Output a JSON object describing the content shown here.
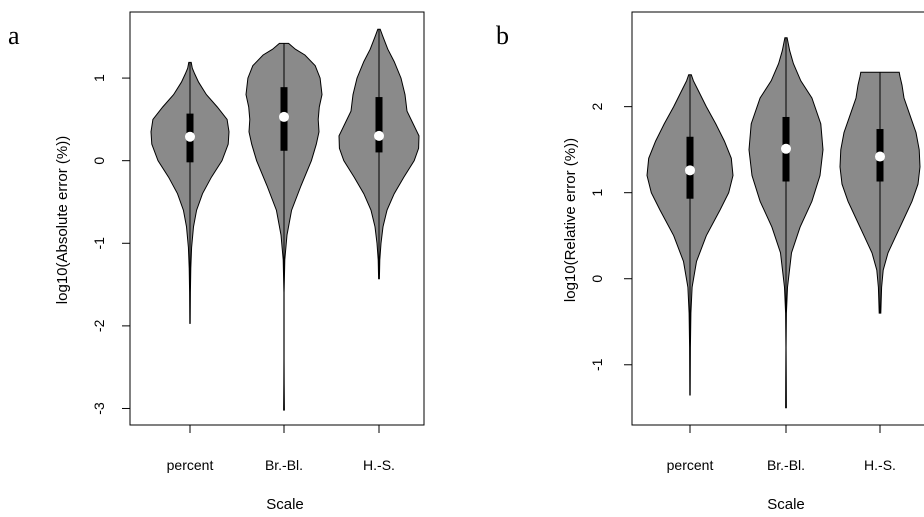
{
  "chart_data": [
    {
      "type": "violin",
      "panel": "a",
      "xlabel": "Scale",
      "ylabel": "log10(Absolute error (%))",
      "categories": [
        "percent",
        "Br.-Bl.",
        "H.-S."
      ],
      "ylim": [
        -3.2,
        1.8
      ],
      "yticks": [
        -3,
        -2,
        -1,
        0,
        1
      ],
      "yticklabels": [
        "-3",
        "-2",
        "-1",
        "0",
        "1"
      ],
      "grid": false,
      "legend": "none",
      "colors": {
        "violin_fill": "#8a8a8a",
        "box": "#000000",
        "median": "#ffffff"
      },
      "series": [
        {
          "category": "percent",
          "min": -1.97,
          "q1": -0.02,
          "median": 0.29,
          "q3": 0.57,
          "max": 1.19,
          "whisker_low": -1.97,
          "whisker_high": 1.19,
          "density": [
            [
              -1.97,
              0.004
            ],
            [
              -1.6,
              0.01
            ],
            [
              -1.3,
              0.02
            ],
            [
              -1.05,
              0.04
            ],
            [
              -0.8,
              0.09
            ],
            [
              -0.6,
              0.17
            ],
            [
              -0.4,
              0.32
            ],
            [
              -0.2,
              0.55
            ],
            [
              0.0,
              0.82
            ],
            [
              0.2,
              0.98
            ],
            [
              0.35,
              1.0
            ],
            [
              0.5,
              0.95
            ],
            [
              0.65,
              0.7
            ],
            [
              0.8,
              0.42
            ],
            [
              0.95,
              0.22
            ],
            [
              1.05,
              0.12
            ],
            [
              1.12,
              0.06
            ],
            [
              1.19,
              0.03
            ]
          ]
        },
        {
          "category": "Br.-Bl.",
          "min": -3.02,
          "q1": 0.12,
          "median": 0.53,
          "q3": 0.89,
          "max": 1.42,
          "whisker_low": -3.02,
          "whisker_high": 1.42,
          "density": [
            [
              -3.02,
              0.01
            ],
            [
              -2.7,
              0.006
            ],
            [
              -2.4,
              0.002
            ],
            [
              -1.6,
              0.002
            ],
            [
              -1.2,
              0.02
            ],
            [
              -0.9,
              0.08
            ],
            [
              -0.6,
              0.2
            ],
            [
              -0.3,
              0.45
            ],
            [
              0.0,
              0.72
            ],
            [
              0.2,
              0.85
            ],
            [
              0.35,
              0.92
            ],
            [
              0.5,
              0.9
            ],
            [
              0.65,
              0.93
            ],
            [
              0.8,
              1.0
            ],
            [
              1.0,
              0.95
            ],
            [
              1.15,
              0.82
            ],
            [
              1.28,
              0.55
            ],
            [
              1.35,
              0.3
            ],
            [
              1.42,
              0.12
            ]
          ]
        },
        {
          "category": "H.-S.",
          "min": -1.43,
          "q1": 0.1,
          "median": 0.3,
          "q3": 0.77,
          "max": 1.59,
          "whisker_low": -1.43,
          "whisker_high": 1.59,
          "density": [
            [
              -1.43,
              0.01
            ],
            [
              -1.2,
              0.02
            ],
            [
              -1.0,
              0.05
            ],
            [
              -0.8,
              0.1
            ],
            [
              -0.6,
              0.2
            ],
            [
              -0.4,
              0.38
            ],
            [
              -0.2,
              0.62
            ],
            [
              0.0,
              0.88
            ],
            [
              0.15,
              0.99
            ],
            [
              0.3,
              1.0
            ],
            [
              0.45,
              0.85
            ],
            [
              0.6,
              0.7
            ],
            [
              0.8,
              0.65
            ],
            [
              1.0,
              0.55
            ],
            [
              1.2,
              0.38
            ],
            [
              1.35,
              0.22
            ],
            [
              1.5,
              0.1
            ],
            [
              1.59,
              0.03
            ]
          ]
        }
      ]
    },
    {
      "type": "violin",
      "panel": "b",
      "xlabel": "Scale",
      "ylabel": "log10(Relative error (%))",
      "categories": [
        "percent",
        "Br.-Bl.",
        "H.-S."
      ],
      "ylim": [
        -1.7,
        3.1
      ],
      "yticks": [
        -1,
        0,
        1,
        2
      ],
      "yticklabels": [
        "-1",
        "0",
        "1",
        "2"
      ],
      "grid": false,
      "legend": "none",
      "colors": {
        "violin_fill": "#8a8a8a",
        "box": "#000000",
        "median": "#ffffff"
      },
      "series": [
        {
          "category": "percent",
          "min": -1.35,
          "q1": 0.93,
          "median": 1.26,
          "q3": 1.65,
          "max": 2.37,
          "whisker_low": -1.35,
          "whisker_high": 2.37,
          "density": [
            [
              -1.35,
              0.004
            ],
            [
              -0.8,
              0.01
            ],
            [
              -0.4,
              0.02
            ],
            [
              -0.1,
              0.05
            ],
            [
              0.2,
              0.15
            ],
            [
              0.5,
              0.38
            ],
            [
              0.8,
              0.7
            ],
            [
              1.0,
              0.9
            ],
            [
              1.2,
              1.0
            ],
            [
              1.4,
              0.96
            ],
            [
              1.6,
              0.8
            ],
            [
              1.8,
              0.6
            ],
            [
              2.0,
              0.38
            ],
            [
              2.2,
              0.18
            ],
            [
              2.3,
              0.08
            ],
            [
              2.37,
              0.03
            ]
          ]
        },
        {
          "category": "Br.-Bl.",
          "min": -1.5,
          "q1": 1.13,
          "median": 1.51,
          "q3": 1.88,
          "max": 2.8,
          "whisker_low": -1.5,
          "whisker_high": 2.8,
          "density": [
            [
              -1.5,
              0.01
            ],
            [
              -1.2,
              0.008
            ],
            [
              -0.8,
              0.004
            ],
            [
              -0.4,
              0.01
            ],
            [
              -0.1,
              0.04
            ],
            [
              0.3,
              0.15
            ],
            [
              0.6,
              0.38
            ],
            [
              0.9,
              0.7
            ],
            [
              1.2,
              0.92
            ],
            [
              1.5,
              1.0
            ],
            [
              1.8,
              0.94
            ],
            [
              2.1,
              0.7
            ],
            [
              2.3,
              0.4
            ],
            [
              2.5,
              0.2
            ],
            [
              2.65,
              0.1
            ],
            [
              2.8,
              0.03
            ]
          ]
        },
        {
          "category": "H.-S.",
          "min": -0.4,
          "q1": 1.13,
          "median": 1.42,
          "q3": 1.74,
          "max": 2.4,
          "whisker_low": -0.4,
          "whisker_high": 2.4,
          "density": [
            [
              -0.4,
              0.02
            ],
            [
              -0.1,
              0.04
            ],
            [
              0.1,
              0.08
            ],
            [
              0.3,
              0.2
            ],
            [
              0.5,
              0.4
            ],
            [
              0.7,
              0.6
            ],
            [
              0.9,
              0.8
            ],
            [
              1.1,
              0.95
            ],
            [
              1.3,
              1.0
            ],
            [
              1.5,
              0.98
            ],
            [
              1.7,
              0.9
            ],
            [
              1.9,
              0.75
            ],
            [
              2.1,
              0.6
            ],
            [
              2.25,
              0.55
            ],
            [
              2.35,
              0.5
            ],
            [
              2.4,
              0.48
            ]
          ]
        }
      ]
    }
  ],
  "panels": [
    {
      "letter": "a"
    },
    {
      "letter": "b"
    }
  ]
}
